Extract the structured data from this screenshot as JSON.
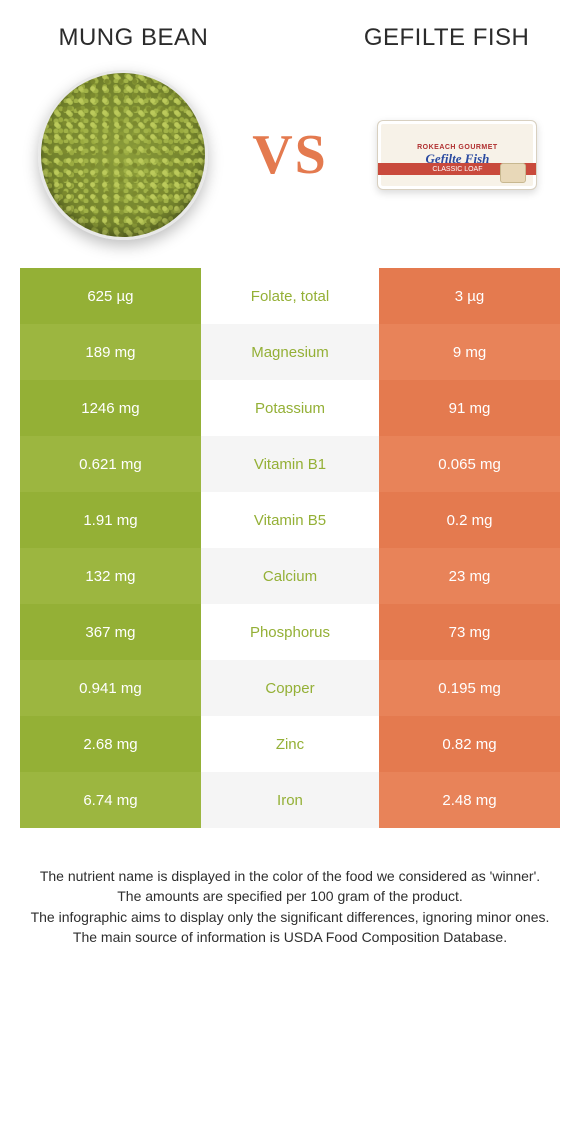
{
  "titles": {
    "left": "MUNG BEAN",
    "right": "GEFILTE FISH"
  },
  "vs_label": "VS",
  "package_labels": {
    "brand": "ROKEACH GOURMET",
    "product": "Gefilte Fish",
    "band": "CLASSIC LOAF"
  },
  "colors": {
    "left_primary": "#94b036",
    "left_alt": "#9cb640",
    "right_primary": "#e47a4f",
    "right_alt": "#e88359",
    "mid_text": "#94b036",
    "vs_text": "#e47a4f",
    "footnote_text": "#2e2e2e"
  },
  "comparison_table": {
    "type": "table",
    "columns": [
      "left_value",
      "nutrient_label",
      "right_value"
    ],
    "label_color_key": "left",
    "rows": [
      {
        "left": "625 µg",
        "label": "Folate, total",
        "right": "3 µg",
        "label_color": "#94b036"
      },
      {
        "left": "189 mg",
        "label": "Magnesium",
        "right": "9 mg",
        "label_color": "#94b036"
      },
      {
        "left": "1246 mg",
        "label": "Potassium",
        "right": "91 mg",
        "label_color": "#94b036"
      },
      {
        "left": "0.621 mg",
        "label": "Vitamin B1",
        "right": "0.065 mg",
        "label_color": "#94b036"
      },
      {
        "left": "1.91 mg",
        "label": "Vitamin B5",
        "right": "0.2 mg",
        "label_color": "#94b036"
      },
      {
        "left": "132 mg",
        "label": "Calcium",
        "right": "23 mg",
        "label_color": "#94b036"
      },
      {
        "left": "367 mg",
        "label": "Phosphorus",
        "right": "73 mg",
        "label_color": "#94b036"
      },
      {
        "left": "0.941 mg",
        "label": "Copper",
        "right": "0.195 mg",
        "label_color": "#94b036"
      },
      {
        "left": "2.68 mg",
        "label": "Zinc",
        "right": "0.82 mg",
        "label_color": "#94b036"
      },
      {
        "left": "6.74 mg",
        "label": "Iron",
        "right": "2.48 mg",
        "label_color": "#94b036"
      }
    ]
  },
  "footnotes": [
    "The nutrient name is displayed in the color of the food we considered as 'winner'.",
    "The amounts are specified per 100 gram of the product.",
    "The infographic aims to display only the significant differences, ignoring minor ones.",
    "The main source of information is USDA Food Composition Database."
  ]
}
